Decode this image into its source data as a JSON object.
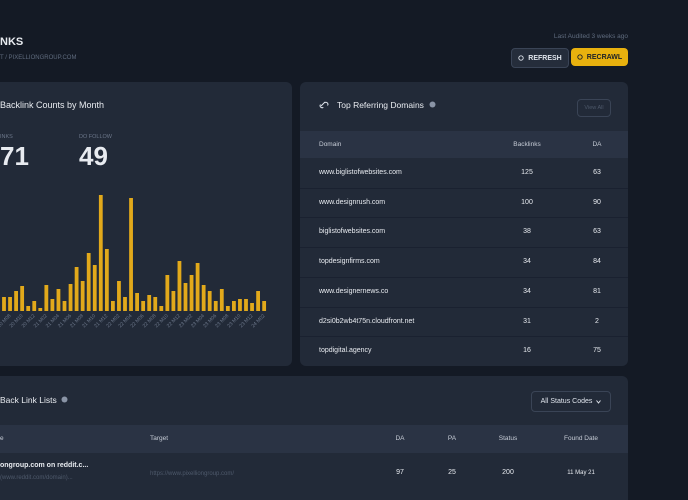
{
  "header": {
    "title": "NKS",
    "breadcrumb": "T / PIXELLIONGROUP.COM",
    "last_audited": "Last Audited 3 weeks ago",
    "refresh": "REFRESH",
    "recrawl": "RECRAWL"
  },
  "chart_data": {
    "type": "bar",
    "title": "Backlink Counts by Month",
    "stats": [
      {
        "label": "INKS",
        "value": 71
      },
      {
        "label": "DO FOLLOW",
        "value": 49
      }
    ],
    "categories": [
      null,
      "20 M08",
      null,
      "20 M10",
      null,
      "20 M12",
      null,
      "21 M02",
      null,
      "21 M04",
      null,
      "21 M06",
      null,
      "21 M08",
      null,
      "21 M10",
      null,
      "21 M12",
      null,
      "22 M02",
      null,
      "22 M04",
      null,
      "22 M06",
      null,
      "22 M08",
      null,
      "22 M10",
      null,
      "22 M12",
      null,
      "23 M02",
      null,
      "23 M04",
      null,
      "23 M06",
      null,
      "23 M08",
      null,
      "23 M10",
      null,
      "23 M12",
      null,
      "24 M02"
    ],
    "values": [
      14,
      14,
      20,
      25,
      5,
      10,
      3,
      26,
      12,
      22,
      10,
      27,
      44,
      30,
      58,
      46,
      116,
      62,
      10,
      30,
      14,
      113,
      18,
      10,
      16,
      14,
      5,
      36,
      20,
      50,
      28,
      36,
      48,
      26,
      20,
      10,
      22,
      5,
      10,
      12,
      12,
      8,
      20,
      10
    ],
    "color": "#e2a91b",
    "ylim": [
      0,
      120
    ]
  },
  "domains": {
    "title": "Top Referring Domains",
    "view_all": "View All",
    "columns": [
      "Domain",
      "Backlinks",
      "DA"
    ],
    "rows": [
      [
        "www.biglistofwebsites.com",
        125,
        63
      ],
      [
        "www.designrush.com",
        100,
        90
      ],
      [
        "biglistofwebsites.com",
        38,
        63
      ],
      [
        "topdesignfirms.com",
        34,
        84
      ],
      [
        "www.designernews.co",
        34,
        81
      ],
      [
        "d2si0b2wb4t75n.cloudfront.net",
        31,
        2
      ],
      [
        "topdigital.agency",
        16,
        75
      ]
    ]
  },
  "backlinks": {
    "title": "Back Link Lists",
    "filter": "All Status Codes",
    "columns": [
      "e",
      "Target",
      "DA",
      "PA",
      "Status",
      "Found Date"
    ],
    "rows": [
      {
        "name": "ongroup.com on reddit.c...",
        "source": "(www.reddit.com/domain)...",
        "target": "https://www.pixelliongroup.com/",
        "da": 97,
        "pa": 25,
        "status": 200,
        "found": "11 May 21"
      }
    ]
  }
}
